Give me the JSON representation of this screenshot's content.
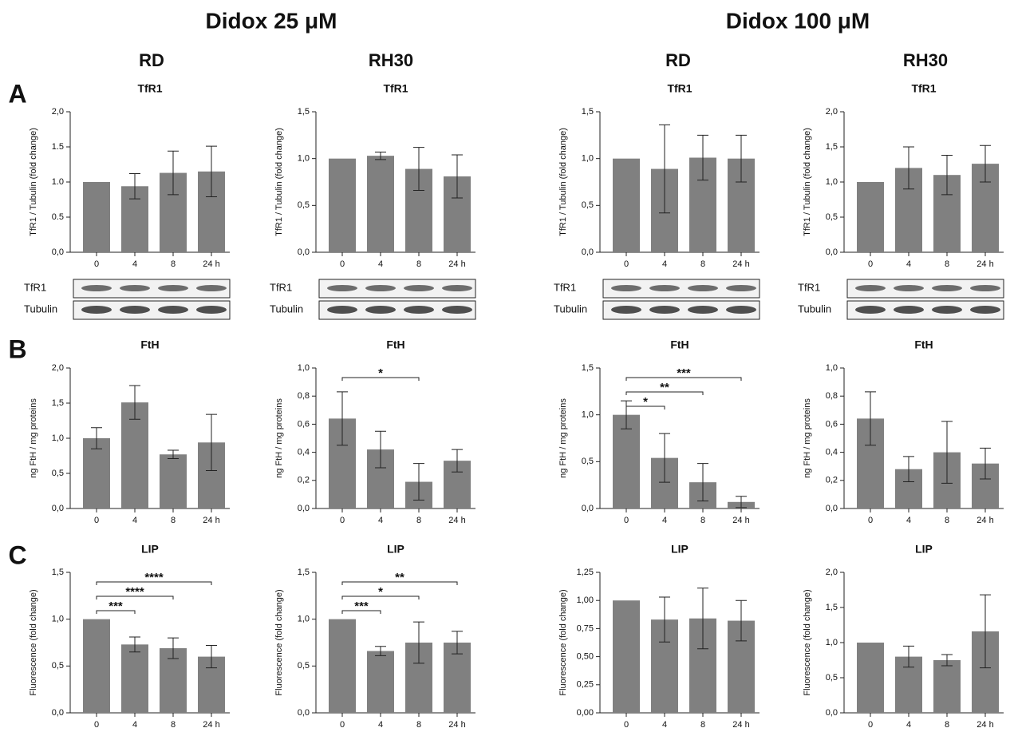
{
  "headers": [
    "Didox 25 μM",
    "Didox 100 μM"
  ],
  "columns": [
    "RD",
    "RH30",
    "RD",
    "RH30"
  ],
  "panels": [
    "A",
    "B",
    "C"
  ],
  "blots": [
    {
      "labels": [
        "TfR1",
        "Tubulin"
      ]
    },
    {
      "labels": [
        "TfR1",
        "Tubulin"
      ]
    },
    {
      "labels": [
        "TfR1",
        "Tubulin"
      ]
    },
    {
      "labels": [
        "TfR1",
        "Tubulin"
      ]
    }
  ],
  "chart_data": [
    {
      "type": "bar",
      "title": "TfR1",
      "ylabel": "TfR1 / Tubulin (fold change)",
      "categories": [
        "0",
        "4",
        "8",
        "24 h"
      ],
      "values": [
        1,
        0.94,
        1.13,
        1.15
      ],
      "errors": [
        null,
        0.18,
        0.31,
        0.36
      ],
      "color": "#808080",
      "ylim": [
        0,
        2
      ],
      "yticks": [
        {
          "value": 0,
          "label": "0,0"
        },
        0.5,
        {
          "value": 1,
          "label": "1.0"
        },
        1.5,
        {
          "value": 2,
          "label": "2,0"
        }
      ]
    },
    {
      "type": "bar",
      "title": "TfR1",
      "ylabel": "TfR1 / Tubulin (fold change)",
      "categories": [
        "0",
        "4",
        "8",
        "24 h"
      ],
      "values": [
        1,
        1.03,
        0.89,
        0.81
      ],
      "errors": [
        null,
        0.04,
        0.23,
        0.23
      ],
      "color": "#808080",
      "ylim": [
        0,
        1.5
      ],
      "yticks": [
        {
          "value": 0,
          "label": "0,0"
        },
        {
          "value": 0.5,
          "label": "0,5"
        },
        {
          "value": 1,
          "label": "1,0"
        },
        {
          "value": 1.5,
          "label": "1,5"
        }
      ]
    },
    {
      "type": "bar",
      "title": "TfR1",
      "ylabel": "TfR1 / Tubulin (fold change)",
      "categories": [
        "0",
        "4",
        "8",
        "24 h"
      ],
      "values": [
        1,
        0.89,
        1.01,
        1.0
      ],
      "errors": [
        null,
        0.47,
        0.24,
        0.25
      ],
      "color": "#808080",
      "ylim": [
        0,
        1.5
      ],
      "yticks": [
        {
          "value": 0,
          "label": "0,0"
        },
        {
          "value": 0.5,
          "label": "0,5"
        },
        {
          "value": 1,
          "label": "1,0"
        },
        {
          "value": 1.5,
          "label": "1,5"
        }
      ]
    },
    {
      "type": "bar",
      "title": "TfR1",
      "ylabel": "TfR1 / Tubulin (fold change)",
      "categories": [
        "0",
        "4",
        "8",
        "24 h"
      ],
      "values": [
        1,
        1.2,
        1.1,
        1.26
      ],
      "errors": [
        null,
        0.3,
        0.28,
        0.26
      ],
      "color": "#808080",
      "ylim": [
        0,
        2
      ],
      "yticks": [
        {
          "value": 0,
          "label": "0,0"
        },
        {
          "value": 0.5,
          "label": "0,5"
        },
        {
          "value": 1,
          "label": "1,0"
        },
        {
          "value": 1.5,
          "label": "1,5"
        },
        {
          "value": 2,
          "label": "2,0"
        }
      ]
    },
    {
      "type": "bar",
      "title": "FtH",
      "ylabel": "ng FtH / mg proteins",
      "categories": [
        "0",
        "4",
        "8",
        "24 h"
      ],
      "values": [
        1.0,
        1.51,
        0.77,
        0.94
      ],
      "errors": [
        0.15,
        0.24,
        0.06,
        0.4
      ],
      "color": "#808080",
      "ylim": [
        0,
        2
      ],
      "yticks": [
        {
          "value": 0,
          "label": "0,0"
        },
        {
          "value": 0.5,
          "label": "0,5"
        },
        {
          "value": 1,
          "label": "1,0"
        },
        {
          "value": 1.5,
          "label": "1,5"
        },
        {
          "value": 2,
          "label": "2,0"
        }
      ]
    },
    {
      "type": "bar",
      "title": "FtH",
      "ylabel": "ng FtH / mg proteins",
      "categories": [
        "0",
        "4",
        "8",
        "24 h"
      ],
      "values": [
        0.64,
        0.42,
        0.19,
        0.34
      ],
      "errors": [
        0.19,
        0.13,
        0.13,
        0.08
      ],
      "color": "#808080",
      "ylim": [
        0,
        1
      ],
      "yticks": [
        {
          "value": 0,
          "label": "0,0"
        },
        {
          "value": 0.2,
          "label": "0,2"
        },
        {
          "value": 0.4,
          "label": "0,4"
        },
        {
          "value": 0.6,
          "label": "0,6"
        },
        {
          "value": 0.8,
          "label": "0,8"
        },
        {
          "value": 1,
          "label": "1,0"
        }
      ],
      "annotations": [
        {
          "text": "*",
          "between": [
            "0",
            "8"
          ]
        }
      ]
    },
    {
      "type": "bar",
      "title": "FtH",
      "ylabel": "ng FtH / mg proteins",
      "categories": [
        "0",
        "4",
        "8",
        "24 h"
      ],
      "values": [
        1.0,
        0.54,
        0.28,
        0.07
      ],
      "errors": [
        0.15,
        0.26,
        0.2,
        0.06
      ],
      "color": "#808080",
      "ylim": [
        0,
        1.5
      ],
      "yticks": [
        {
          "value": 0,
          "label": "0,0"
        },
        {
          "value": 0.5,
          "label": "0,5"
        },
        {
          "value": 1,
          "label": "1,0"
        },
        {
          "value": 1.5,
          "label": "1,5"
        }
      ],
      "annotations": [
        {
          "text": "*",
          "between": [
            "0",
            "4"
          ]
        },
        {
          "text": "**",
          "between": [
            "0",
            "8"
          ]
        },
        {
          "text": "***",
          "between": [
            "0",
            "24 h"
          ]
        }
      ]
    },
    {
      "type": "bar",
      "title": "FtH",
      "ylabel": "ng FtH / mg proteins",
      "categories": [
        "0",
        "4",
        "8",
        "24 h"
      ],
      "values": [
        0.64,
        0.28,
        0.4,
        0.32
      ],
      "errors": [
        0.19,
        0.09,
        0.22,
        0.11
      ],
      "color": "#808080",
      "ylim": [
        0,
        1
      ],
      "yticks": [
        {
          "value": 0,
          "label": "0,0"
        },
        {
          "value": 0.2,
          "label": "0,2"
        },
        {
          "value": 0.4,
          "label": "0,4"
        },
        {
          "value": 0.6,
          "label": "0,6"
        },
        {
          "value": 0.8,
          "label": "0,8"
        },
        {
          "value": 1,
          "label": "1,0"
        }
      ]
    },
    {
      "type": "bar",
      "title": "LIP",
      "ylabel": "Fluorescence (fold change)",
      "categories": [
        "0",
        "4",
        "8",
        "24 h"
      ],
      "values": [
        1,
        0.73,
        0.69,
        0.6
      ],
      "errors": [
        null,
        0.08,
        0.11,
        0.12
      ],
      "color": "#808080",
      "ylim": [
        0,
        1.5
      ],
      "yticks": [
        {
          "value": 0,
          "label": "0,0"
        },
        {
          "value": 0.5,
          "label": "0,5"
        },
        {
          "value": 1,
          "label": "1,0"
        },
        {
          "value": 1.5,
          "label": "1,5"
        }
      ],
      "annotations": [
        {
          "text": "***",
          "between": [
            "0",
            "4"
          ]
        },
        {
          "text": "****",
          "between": [
            "0",
            "8"
          ]
        },
        {
          "text": "****",
          "between": [
            "0",
            "24 h"
          ]
        }
      ]
    },
    {
      "type": "bar",
      "title": "LIP",
      "ylabel": "Fluorescence (fold change)",
      "categories": [
        "0",
        "4",
        "8",
        "24 h"
      ],
      "values": [
        1,
        0.66,
        0.75,
        0.75
      ],
      "errors": [
        null,
        0.05,
        0.22,
        0.12
      ],
      "color": "#808080",
      "ylim": [
        0,
        1.5
      ],
      "yticks": [
        {
          "value": 0,
          "label": "0,0"
        },
        {
          "value": 0.5,
          "label": "0,5"
        },
        {
          "value": 1,
          "label": "1,0"
        },
        {
          "value": 1.5,
          "label": "1,5"
        }
      ],
      "annotations": [
        {
          "text": "***",
          "between": [
            "0",
            "4"
          ]
        },
        {
          "text": "*",
          "between": [
            "0",
            "8"
          ]
        },
        {
          "text": "**",
          "between": [
            "0",
            "24 h"
          ]
        }
      ]
    },
    {
      "type": "bar",
      "title": "LIP",
      "ylabel": "Fluorescence (fold change)",
      "categories": [
        "0",
        "4",
        "8",
        "24 h"
      ],
      "values": [
        1,
        0.83,
        0.84,
        0.82
      ],
      "errors": [
        null,
        0.2,
        0.27,
        0.18
      ],
      "color": "#808080",
      "ylim": [
        0,
        1.25
      ],
      "yticks": [
        {
          "value": 0,
          "label": "0,00"
        },
        {
          "value": 0.25,
          "label": "0,25"
        },
        {
          "value": 0.5,
          "label": "0,50"
        },
        {
          "value": 0.75,
          "label": "0,75"
        },
        {
          "value": 1,
          "label": "1,00"
        },
        {
          "value": 1.25,
          "label": "1,25"
        }
      ]
    },
    {
      "type": "bar",
      "title": "LIP",
      "ylabel": "Fluorescence (fold change)",
      "categories": [
        "0",
        "4",
        "8",
        "24 h"
      ],
      "values": [
        1,
        0.8,
        0.75,
        1.16
      ],
      "errors": [
        null,
        0.15,
        0.08,
        0.52
      ],
      "color": "#808080",
      "ylim": [
        0,
        2
      ],
      "yticks": [
        {
          "value": 0,
          "label": "0,0"
        },
        {
          "value": 0.5,
          "label": "0,5"
        },
        {
          "value": 1,
          "label": "1,0"
        },
        {
          "value": 1.5,
          "label": "1,5"
        },
        {
          "value": 2,
          "label": "2,0"
        }
      ]
    }
  ]
}
